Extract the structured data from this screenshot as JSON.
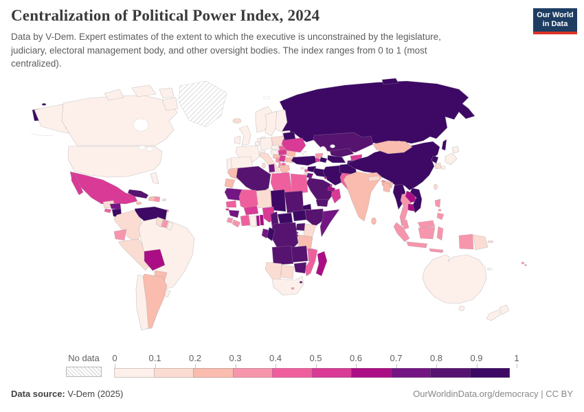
{
  "header": {
    "title": "Centralization of Political Power Index, 2024",
    "subtitle": "Data by V-Dem. Expert estimates of the extent to which the executive is unconstrained by the legislature, judiciary, electoral management body, and other oversight bodies. The index ranges from 0 to 1 (most centralized).",
    "logo": {
      "line1": "Our World",
      "line2": "in Data",
      "bg_color": "#1d3d63",
      "accent_color": "#dc3328"
    }
  },
  "legend": {
    "no_data_label": "No data",
    "tick_labels": [
      "0",
      "0.1",
      "0.2",
      "0.3",
      "0.4",
      "0.5",
      "0.6",
      "0.7",
      "0.8",
      "0.9",
      "1"
    ]
  },
  "footer": {
    "source_label": "Data source:",
    "source_value": " V-Dem (2025)",
    "credit": "OurWorldinData.org/democracy | CC BY"
  },
  "chart_data": {
    "type": "choropleth",
    "title": "Centralization of Political Power Index, 2024",
    "year": "2024",
    "value_range": [
      0,
      1
    ],
    "legend_position": "bottom",
    "scale": {
      "bins": [
        0,
        0.1,
        0.2,
        0.3,
        0.4,
        0.5,
        0.6,
        0.7,
        0.8,
        0.9,
        1
      ],
      "colors": [
        "#fdf0eb",
        "#fbdcd2",
        "#f9bcae",
        "#f795ad",
        "#ef5f9e",
        "#d93a95",
        "#ab0e84",
        "#731683",
        "#571370",
        "#3d0965"
      ],
      "no_data_style": "hatched"
    },
    "entities": {
      "United States": 0.05,
      "Canada": 0.05,
      "Greenland": null,
      "Mexico": 0.5,
      "Guatemala": 0.15,
      "Honduras": 0.75,
      "El Salvador": 0.45,
      "Nicaragua": 0.95,
      "Costa Rica": 0.05,
      "Panama": 0.3,
      "Cuba": 0.85,
      "Jamaica": 0.25,
      "Haiti": 0.25,
      "Dominican Republic": 0.35,
      "Puerto Rico": 0.15,
      "Trinidad and Tobago": 0.3,
      "Venezuela": 0.95,
      "Colombia": 0.1,
      "Ecuador": 0.3,
      "Peru": 0.15,
      "Brazil": 0.05,
      "Bolivia": 0.65,
      "Paraguay": 0.25,
      "Uruguay": 0.05,
      "Argentina": 0.25,
      "Chile": 0.05,
      "Guyana": 0.15,
      "Suriname": 0.35,
      "French Guiana": 0.05,
      "Iceland": 0.12,
      "United Kingdom": 0.05,
      "Ireland": 0.05,
      "Norway": 0.05,
      "Sweden": 0.05,
      "Finland": 0.05,
      "Denmark": 0.05,
      "Estonia": 0.05,
      "Latvia": 0.1,
      "Lithuania": 0.05,
      "Poland": 0.15,
      "Germany": 0.05,
      "Netherlands": 0.05,
      "Belgium": 0.05,
      "France": 0.05,
      "Switzerland": 0.05,
      "Czechia": 0.08,
      "Austria": 0.05,
      "Spain": 0.05,
      "Portugal": 0.05,
      "Italy": 0.15,
      "Croatia": 0.28,
      "Bosnia and Herzegovina": 0.35,
      "Hungary": 0.55,
      "Slovakia": 0.45,
      "Romania": 0.28,
      "Serbia": 0.55,
      "Bulgaria": 0.28,
      "Albania": 0.38,
      "North Macedonia": 0.45,
      "Greece": 0.25,
      "Moldova": 0.35,
      "Ukraine": 0.5,
      "Belarus": 0.92,
      "Russia": 0.95,
      "Crimea": null,
      "Turkey": 0.92,
      "Cyprus": 0.15,
      "Georgia": 0.35,
      "Armenia": 0.55,
      "Azerbaijan": 0.9,
      "Syria": 0.95,
      "Lebanon": 0.45,
      "Israel": 0.1,
      "Jordan": 0.78,
      "Iraq": 0.92,
      "Iran": 0.95,
      "Kuwait": 0.6,
      "Saudi Arabia": 0.88,
      "Yemen": 0.85,
      "Oman": 0.55,
      "United Arab Emirates": 0.65,
      "Qatar": 0.55,
      "Kazakhstan": 0.85,
      "Uzbekistan": 0.8,
      "Turkmenistan": 0.9,
      "Kyrgyzstan": 0.5,
      "Tajikistan": 0.85,
      "Afghanistan": 0.92,
      "Pakistan": 0.45,
      "India": 0.25,
      "Nepal": 0.15,
      "Bhutan": 0.3,
      "Bangladesh": 0.28,
      "Sri Lanka": 0.25,
      "China": 0.95,
      "Mongolia": 0.22,
      "North Korea": 0.95,
      "South Korea": 0.1,
      "Japan": 0.05,
      "Taiwan": 0.1,
      "Myanmar": 0.9,
      "Thailand": 0.35,
      "Laos": 0.65,
      "Cambodia": 0.65,
      "Vietnam": 0.92,
      "Malaysia": 0.35,
      "Indonesia": 0.35,
      "Papua New Guinea": 0.18,
      "Philippines": 0.35,
      "Australia": 0.05,
      "New Zealand": 0.05,
      "Fiji": 0.3,
      "New Caledonia": null,
      "Morocco": 0.25,
      "Western Sahara": 0.25,
      "Algeria": 0.85,
      "Tunisia": 0.75,
      "Libya": 0.45,
      "Egypt": 0.45,
      "Mauritania": 0.75,
      "Mali": 0.45,
      "Niger": 0.15,
      "Chad": 0.95,
      "Sudan": 0.85,
      "Eritrea": 0.95,
      "Djibouti": 0.6,
      "Senegal": 0.45,
      "Guinea-Bissau": 0.5,
      "Guinea": 0.75,
      "Sierra Leone": 0.35,
      "Liberia": 0.3,
      "Cote d'Ivoire": 0.4,
      "Ghana": 0.08,
      "Togo": 0.6,
      "Benin": 0.65,
      "Burkina Faso": 0.55,
      "Nigeria": 0.5,
      "Cameroon": 0.85,
      "Central African Republic": 0.9,
      "South Sudan": 0.92,
      "Ethiopia": 0.85,
      "Somalia": 0.75,
      "Uganda": 0.85,
      "Kenya": 0.1,
      "Rwanda": 0.65,
      "Burundi": 0.8,
      "Tanzania": 0.25,
      "Democratic Republic of Congo": 0.85,
      "Congo": 0.9,
      "Gabon": 0.75,
      "Angola": 0.8,
      "Zambia": 0.8,
      "Malawi": 0.45,
      "Mozambique": 0.45,
      "Zimbabwe": 0.85,
      "Botswana": 0.1,
      "Namibia": 0.15,
      "South Africa": 0.05,
      "Lesotho": 0.3,
      "Eswatini": 0.8,
      "Madagascar": 0.65
    }
  }
}
